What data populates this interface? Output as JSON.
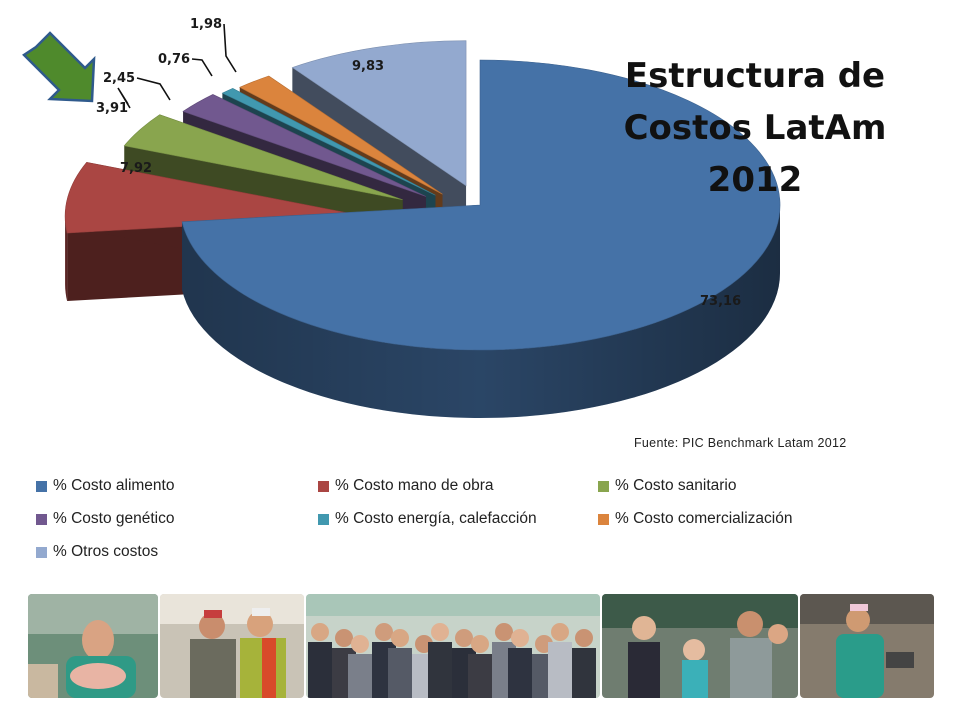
{
  "slide": {
    "title_lines": [
      "Estructura de",
      "Costos LatAm",
      "2012"
    ],
    "source": "Fuente: PIC Benchmark Latam 2012"
  },
  "chart_data": {
    "type": "pie",
    "title": "Estructura de Costos LatAm 2012",
    "categories": [
      "% Costo alimento",
      "% Costo mano de obra",
      "% Costo sanitario",
      "% Costo genético",
      "% Costo energía, calefacción",
      "% Costo comercialización",
      "% Otros costos"
    ],
    "values": [
      73.16,
      7.92,
      3.91,
      2.45,
      0.76,
      1.98,
      9.83
    ],
    "data_labels": [
      "73,16",
      "7,92",
      "3,91",
      "2,45",
      "0,76",
      "1,98",
      "9,83"
    ],
    "colors": [
      "#4572A7",
      "#AA4643",
      "#89A54E",
      "#71588F",
      "#4198AF",
      "#DB843D",
      "#93A9CF"
    ],
    "legend_position": "bottom",
    "exploded": true,
    "three_d": true
  },
  "annotation": {
    "icon": "green-arrow-icon",
    "color": "#4a7a2c"
  },
  "photo_strip": {
    "icons": [
      "farm-worker-photo",
      "workers-photo",
      "group-photo",
      "staff-photo",
      "worker-photo"
    ]
  }
}
